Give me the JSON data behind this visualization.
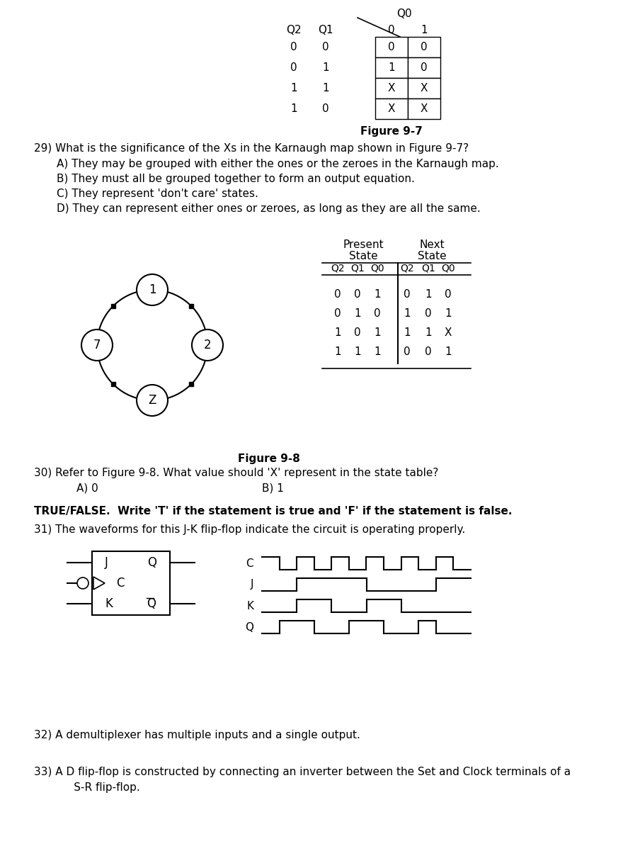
{
  "bg_color": "#ffffff",
  "text_color": "#000000",
  "kmap_rows": [
    [
      "0",
      "0",
      "0",
      "0"
    ],
    [
      "0",
      "1",
      "1",
      "0"
    ],
    [
      "1",
      "1",
      "X",
      "X"
    ],
    [
      "1",
      "0",
      "X",
      "X"
    ]
  ],
  "q29_text": "29) What is the significance of the Xs in the Karnaugh map shown in Figure 9-7?",
  "q29_options": [
    "A) They may be grouped with either the ones or the zeroes in the Karnaugh map.",
    "B) They must all be grouped together to form an output equation.",
    "C) They represent 'don't care' states.",
    "D) They can represent either ones or zeroes, as long as they are all the same."
  ],
  "state_table_rows": [
    [
      "0",
      "0",
      "1",
      "0",
      "1",
      "0"
    ],
    [
      "0",
      "1",
      "0",
      "1",
      "0",
      "1"
    ],
    [
      "1",
      "0",
      "1",
      "1",
      "1",
      "X"
    ],
    [
      "1",
      "1",
      "1",
      "0",
      "0",
      "1"
    ]
  ],
  "q30_text": "30) Refer to Figure 9-8. What value should 'X' represent in the state table?",
  "q30_a": "A) 0",
  "q30_b": "B) 1",
  "tf_header": "TRUE/FALSE.  Write 'T' if the statement is true and 'F' if the statement is false.",
  "q31_text": "31) The waveforms for this J-K flip-flop indicate the circuit is operating properly.",
  "q32_text": "32) A demultiplexer has multiple inputs and a single output.",
  "q33_line1": "33) A D flip-flop is constructed by connecting an inverter between the Set and Clock terminals of a",
  "q33_line2": "      S-R flip-flop."
}
